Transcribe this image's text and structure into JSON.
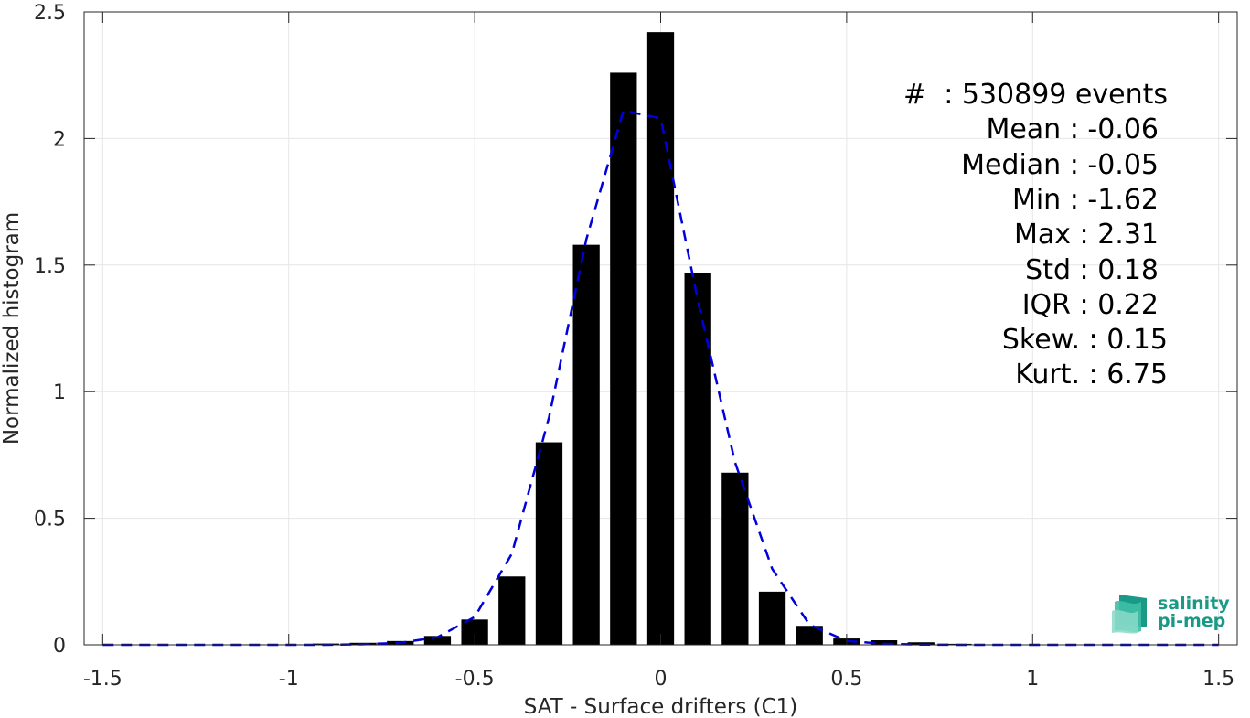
{
  "chart_data": {
    "type": "bar",
    "xlabel": "SAT - Surface drifters (C1)",
    "ylabel": "Normalized histogram",
    "xlim": [
      -1.55,
      1.55
    ],
    "ylim": [
      0,
      2.5
    ],
    "xticks": [
      -1.5,
      -1,
      -0.5,
      0,
      0.5,
      1,
      1.5
    ],
    "xtick_labels": [
      "-1.5",
      "-1",
      "-0.5",
      "0",
      "0.5",
      "1",
      "1.5"
    ],
    "yticks": [
      0,
      0.5,
      1,
      1.5,
      2,
      2.5
    ],
    "ytick_labels": [
      "0",
      "0.5",
      "1",
      "1.5",
      "2",
      "2.5"
    ],
    "grid": true,
    "bar_color": "#000000",
    "fit_color": "#0000dd",
    "bars": {
      "x": [
        -1.5,
        -1.4,
        -1.3,
        -1.2,
        -1.1,
        -1.0,
        -0.9,
        -0.8,
        -0.7,
        -0.6,
        -0.5,
        -0.4,
        -0.3,
        -0.2,
        -0.1,
        0.0,
        0.1,
        0.2,
        0.3,
        0.4,
        0.5,
        0.6,
        0.7,
        0.8,
        0.9,
        1.0,
        1.1,
        1.2,
        1.3,
        1.4,
        1.5
      ],
      "values": [
        0.001,
        0.001,
        0.001,
        0.001,
        0.002,
        0.002,
        0.005,
        0.008,
        0.015,
        0.035,
        0.1,
        0.27,
        0.8,
        1.58,
        2.26,
        2.42,
        1.47,
        0.68,
        0.21,
        0.075,
        0.025,
        0.018,
        0.01,
        0.004,
        0.002,
        0.001,
        0.001,
        0.001,
        0.001,
        0.001,
        0.001
      ]
    },
    "fit_line": {
      "style": "dashed",
      "x": [
        -1.5,
        -1.4,
        -1.3,
        -1.2,
        -1.1,
        -1.0,
        -0.9,
        -0.8,
        -0.7,
        -0.6,
        -0.5,
        -0.4,
        -0.3,
        -0.2,
        -0.1,
        0.0,
        0.1,
        0.2,
        0.3,
        0.4,
        0.5,
        0.6,
        0.7,
        0.8,
        0.9,
        1.0,
        1.1,
        1.2,
        1.3,
        1.4,
        1.5
      ],
      "y": [
        0,
        0,
        0,
        0,
        0,
        0,
        0,
        0.002,
        0.008,
        0.03,
        0.11,
        0.36,
        0.9,
        1.6,
        2.11,
        2.08,
        1.36,
        0.72,
        0.3,
        0.08,
        0.015,
        0.004,
        0.001,
        0,
        0,
        0,
        0,
        0,
        0,
        0,
        0
      ]
    },
    "annotations": [
      "#  : 530899 events",
      "Mean : -0.06",
      "Median : -0.05",
      "Min : -1.62",
      "Max : 2.31",
      "Std : 0.18",
      "IQR : 0.22",
      "Skew. : 0.15",
      "Kurt. : 6.75"
    ]
  },
  "logo": {
    "line1": "salinity",
    "line2": "pi-mep"
  }
}
